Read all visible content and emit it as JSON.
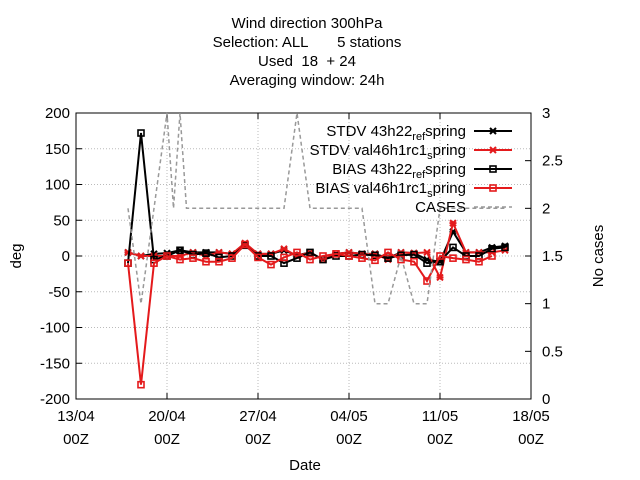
{
  "chart_data": {
    "type": "line",
    "title_lines": [
      "Wind direction 300hPa",
      "Selection: ALL       5 stations",
      "Used  18  + 24",
      "Averaging window: 24h"
    ],
    "xlabel": "Date",
    "ylabel": "deg",
    "y2label": "No cases",
    "ylim": [
      -200,
      200
    ],
    "y2lim": [
      0,
      3
    ],
    "xlim_days": [
      0,
      35
    ],
    "x_ticks": [
      {
        "day": 0,
        "line1": "13/04",
        "line2": "00Z"
      },
      {
        "day": 7,
        "line1": "20/04",
        "line2": "00Z"
      },
      {
        "day": 14,
        "line1": "27/04",
        "line2": "00Z"
      },
      {
        "day": 21,
        "line1": "04/05",
        "line2": "00Z"
      },
      {
        "day": 28,
        "line1": "11/05",
        "line2": "00Z"
      },
      {
        "day": 35,
        "line1": "18/05",
        "line2": "00Z"
      }
    ],
    "y_ticks": [
      -200,
      -150,
      -100,
      -50,
      0,
      50,
      100,
      150,
      200
    ],
    "y2_ticks": [
      "0",
      "0.5",
      "1",
      "1.5",
      "2",
      "2.5",
      "3"
    ],
    "legend_position": "top-right",
    "series": [
      {
        "name": "STDV 43h22_ref_spring",
        "legend_main": "STDV 43h22",
        "legend_sub": "ref",
        "legend_tail": "spring",
        "color": "#000000",
        "marker": "star",
        "dashed": false,
        "axis": "y",
        "points": [
          [
            4,
            5
          ],
          [
            5,
            0
          ],
          [
            6,
            3
          ],
          [
            7,
            4
          ],
          [
            8,
            8
          ],
          [
            9,
            5
          ],
          [
            10,
            5
          ],
          [
            11,
            5
          ],
          [
            12,
            3
          ],
          [
            13,
            15
          ],
          [
            14,
            3
          ],
          [
            15,
            3
          ],
          [
            16,
            8
          ],
          [
            17,
            1
          ],
          [
            18,
            5
          ],
          [
            19,
            -5
          ],
          [
            20,
            3
          ],
          [
            21,
            5
          ],
          [
            22,
            3
          ],
          [
            23,
            3
          ],
          [
            24,
            -3
          ],
          [
            25,
            5
          ],
          [
            26,
            4
          ],
          [
            27,
            -5
          ],
          [
            28,
            -8
          ],
          [
            29,
            34
          ],
          [
            30,
            5
          ],
          [
            31,
            5
          ],
          [
            32,
            12
          ],
          [
            33,
            14
          ]
        ]
      },
      {
        "name": "STDV val46h1rc1_spring",
        "legend_main": "STDV val46h1rc1",
        "legend_sub": "s",
        "legend_tail": "pring",
        "color": "#e41a1c",
        "marker": "star",
        "dashed": false,
        "axis": "y",
        "points": [
          [
            4,
            5
          ],
          [
            5,
            0
          ],
          [
            6,
            0
          ],
          [
            7,
            0
          ],
          [
            8,
            0
          ],
          [
            9,
            5
          ],
          [
            10,
            0
          ],
          [
            11,
            5
          ],
          [
            12,
            3
          ],
          [
            13,
            18
          ],
          [
            14,
            3
          ],
          [
            15,
            3
          ],
          [
            16,
            10
          ],
          [
            17,
            0
          ],
          [
            18,
            5
          ],
          [
            19,
            -5
          ],
          [
            20,
            3
          ],
          [
            21,
            5
          ],
          [
            22,
            3
          ],
          [
            23,
            3
          ],
          [
            24,
            -5
          ],
          [
            25,
            5
          ],
          [
            26,
            4
          ],
          [
            27,
            5
          ],
          [
            28,
            -30
          ],
          [
            29,
            46
          ],
          [
            30,
            5
          ],
          [
            31,
            5
          ],
          [
            32,
            5
          ],
          [
            33,
            8
          ]
        ]
      },
      {
        "name": "BIAS 43h22_ref_spring",
        "legend_main": "BIAS 43h22",
        "legend_sub": "ref",
        "legend_tail": "spring",
        "color": "#000000",
        "marker": "square",
        "dashed": false,
        "axis": "y",
        "points": [
          [
            4,
            -10
          ],
          [
            5,
            172
          ],
          [
            6,
            -5
          ],
          [
            7,
            0
          ],
          [
            8,
            8
          ],
          [
            9,
            2
          ],
          [
            10,
            4
          ],
          [
            11,
            -2
          ],
          [
            12,
            0
          ],
          [
            13,
            15
          ],
          [
            14,
            0
          ],
          [
            15,
            0
          ],
          [
            16,
            -10
          ],
          [
            17,
            -3
          ],
          [
            18,
            5
          ],
          [
            19,
            -5
          ],
          [
            20,
            0
          ],
          [
            21,
            0
          ],
          [
            22,
            2
          ],
          [
            23,
            1
          ],
          [
            24,
            -3
          ],
          [
            25,
            1
          ],
          [
            26,
            2
          ],
          [
            27,
            -10
          ],
          [
            28,
            -8
          ],
          [
            29,
            12
          ],
          [
            30,
            0
          ],
          [
            31,
            0
          ],
          [
            32,
            10
          ],
          [
            33,
            12
          ]
        ]
      },
      {
        "name": "BIAS val46h1rc1_spring",
        "legend_main": "BIAS val46h1rc1",
        "legend_sub": "s",
        "legend_tail": "pring",
        "color": "#e41a1c",
        "marker": "square",
        "dashed": false,
        "axis": "y",
        "points": [
          [
            4,
            -10
          ],
          [
            5,
            -180
          ],
          [
            6,
            -10
          ],
          [
            7,
            0
          ],
          [
            8,
            -5
          ],
          [
            9,
            -3
          ],
          [
            10,
            -8
          ],
          [
            11,
            -8
          ],
          [
            12,
            -3
          ],
          [
            13,
            16
          ],
          [
            14,
            -2
          ],
          [
            15,
            -12
          ],
          [
            16,
            -2
          ],
          [
            17,
            5
          ],
          [
            18,
            -5
          ],
          [
            19,
            0
          ],
          [
            20,
            3
          ],
          [
            21,
            0
          ],
          [
            22,
            -3
          ],
          [
            23,
            -6
          ],
          [
            24,
            5
          ],
          [
            25,
            -5
          ],
          [
            26,
            -8
          ],
          [
            27,
            -35
          ],
          [
            28,
            0
          ],
          [
            29,
            -3
          ],
          [
            30,
            -5
          ],
          [
            31,
            -8
          ],
          [
            32,
            0
          ]
        ]
      },
      {
        "name": "CASES",
        "legend_main": "CASES",
        "legend_sub": "",
        "legend_tail": "",
        "color": "#999999",
        "marker": "none",
        "dashed": true,
        "axis": "y2",
        "points": [
          [
            4,
            2
          ],
          [
            5,
            1
          ],
          [
            6,
            2
          ],
          [
            7,
            3
          ],
          [
            7.5,
            2
          ],
          [
            8,
            3
          ],
          [
            8.5,
            2
          ],
          [
            9,
            2
          ],
          [
            10,
            2
          ],
          [
            16,
            2
          ],
          [
            17,
            3
          ],
          [
            18,
            2
          ],
          [
            20,
            2
          ],
          [
            21,
            2
          ],
          [
            22,
            2
          ],
          [
            23,
            1
          ],
          [
            24,
            1
          ],
          [
            25,
            1.5
          ],
          [
            26,
            1
          ],
          [
            27,
            1
          ],
          [
            28,
            2
          ],
          [
            29,
            2
          ],
          [
            30,
            2
          ],
          [
            31,
            2
          ],
          [
            32,
            2
          ],
          [
            33,
            2
          ]
        ]
      }
    ]
  }
}
